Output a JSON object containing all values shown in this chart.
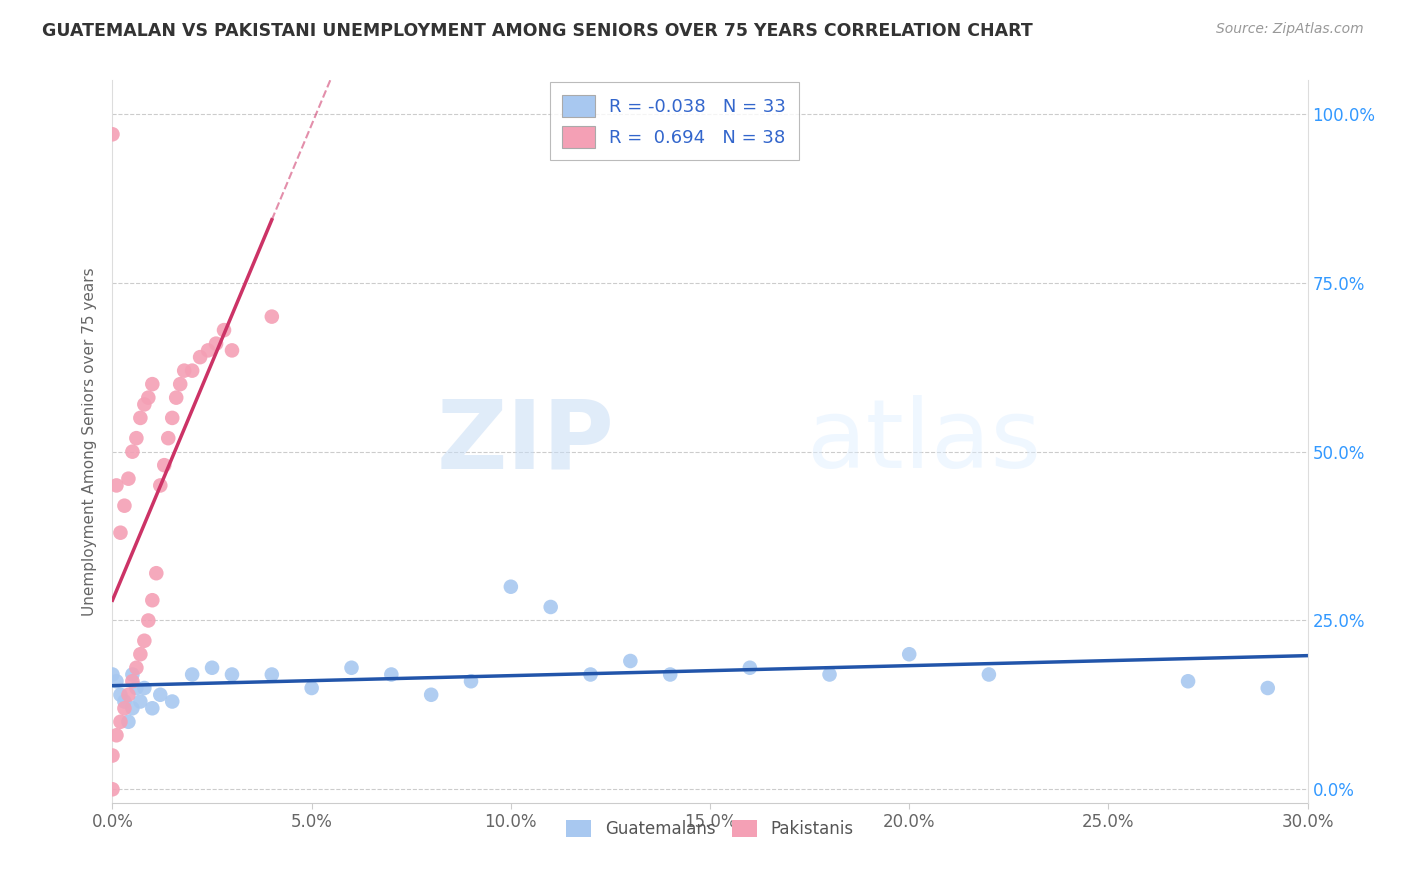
{
  "title": "GUATEMALAN VS PAKISTANI UNEMPLOYMENT AMONG SENIORS OVER 75 YEARS CORRELATION CHART",
  "source": "Source: ZipAtlas.com",
  "ylabel": "Unemployment Among Seniors over 75 years",
  "xlim": [
    0.0,
    0.3
  ],
  "ylim": [
    -0.02,
    1.05
  ],
  "guatemalan_R": -0.038,
  "guatemalan_N": 33,
  "pakistani_R": 0.694,
  "pakistani_N": 38,
  "guatemalan_color": "#a8c8f0",
  "pakistani_color": "#f4a0b5",
  "guatemalan_line_color": "#2255aa",
  "pakistani_line_color": "#cc3366",
  "watermark_zip": "ZIP",
  "watermark_atlas": "atlas",
  "guatemalan_x": [
    0.0,
    0.001,
    0.002,
    0.003,
    0.004,
    0.005,
    0.005,
    0.006,
    0.007,
    0.008,
    0.01,
    0.012,
    0.015,
    0.02,
    0.025,
    0.03,
    0.04,
    0.05,
    0.06,
    0.07,
    0.08,
    0.09,
    0.1,
    0.11,
    0.12,
    0.13,
    0.14,
    0.16,
    0.18,
    0.2,
    0.22,
    0.27,
    0.29
  ],
  "guatemalan_y": [
    0.17,
    0.16,
    0.14,
    0.13,
    0.1,
    0.12,
    0.17,
    0.15,
    0.13,
    0.15,
    0.12,
    0.14,
    0.13,
    0.17,
    0.18,
    0.17,
    0.17,
    0.15,
    0.18,
    0.17,
    0.14,
    0.16,
    0.3,
    0.27,
    0.17,
    0.19,
    0.17,
    0.18,
    0.17,
    0.2,
    0.17,
    0.16,
    0.15
  ],
  "pakistani_x": [
    0.0,
    0.0,
    0.0,
    0.001,
    0.001,
    0.002,
    0.002,
    0.003,
    0.003,
    0.004,
    0.004,
    0.005,
    0.005,
    0.006,
    0.006,
    0.007,
    0.007,
    0.008,
    0.008,
    0.009,
    0.009,
    0.01,
    0.01,
    0.011,
    0.012,
    0.013,
    0.014,
    0.015,
    0.016,
    0.017,
    0.018,
    0.02,
    0.022,
    0.024,
    0.026,
    0.028,
    0.03,
    0.04
  ],
  "pakistani_y": [
    0.0,
    0.05,
    0.97,
    0.08,
    0.45,
    0.1,
    0.38,
    0.12,
    0.42,
    0.14,
    0.46,
    0.16,
    0.5,
    0.18,
    0.52,
    0.2,
    0.55,
    0.22,
    0.57,
    0.25,
    0.58,
    0.28,
    0.6,
    0.32,
    0.45,
    0.48,
    0.52,
    0.55,
    0.58,
    0.6,
    0.62,
    0.62,
    0.64,
    0.65,
    0.66,
    0.68,
    0.65,
    0.7
  ]
}
